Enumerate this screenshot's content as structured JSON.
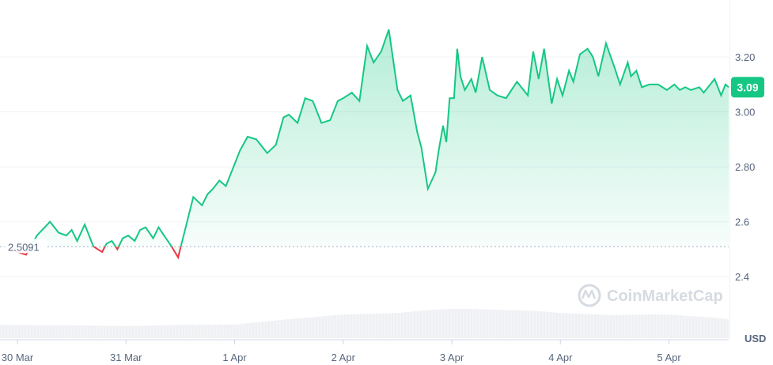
{
  "chart_data": {
    "type": "area",
    "currency_label": "USD",
    "watermark": "CoinMarketCap",
    "baseline": {
      "value": 2.5091,
      "label": "2.5091"
    },
    "current": {
      "value": 3.09,
      "label": "3.09"
    },
    "ylim": [
      2.3,
      3.35
    ],
    "y_ticks": [
      {
        "value": 2.4,
        "label": "2.4"
      },
      {
        "value": 2.6,
        "label": "2.6"
      },
      {
        "value": 2.8,
        "label": "2.80"
      },
      {
        "value": 3.0,
        "label": "3.00"
      },
      {
        "value": 3.2,
        "label": "3.20"
      }
    ],
    "xlim": [
      0,
      6.55
    ],
    "x_ticks": [
      {
        "value": 0.0,
        "label": "30 Mar"
      },
      {
        "value": 1.0,
        "label": "31 Mar"
      },
      {
        "value": 2.0,
        "label": "1 Apr"
      },
      {
        "value": 3.0,
        "label": "2 Apr"
      },
      {
        "value": 4.0,
        "label": "3 Apr"
      },
      {
        "value": 5.0,
        "label": "4 Apr"
      },
      {
        "value": 6.0,
        "label": "5 Apr"
      }
    ],
    "price_series": {
      "x": [
        -0.05,
        0.0,
        0.08,
        0.18,
        0.3,
        0.38,
        0.45,
        0.5,
        0.55,
        0.62,
        0.7,
        0.78,
        0.82,
        0.87,
        0.92,
        0.97,
        1.02,
        1.08,
        1.13,
        1.18,
        1.25,
        1.3,
        1.35,
        1.42,
        1.48,
        1.55,
        1.62,
        1.7,
        1.75,
        1.8,
        1.86,
        1.92,
        2.0,
        2.05,
        2.12,
        2.2,
        2.3,
        2.38,
        2.45,
        2.5,
        2.58,
        2.65,
        2.72,
        2.8,
        2.88,
        2.95,
        3.0,
        3.08,
        3.15,
        3.22,
        3.28,
        3.35,
        3.42,
        3.5,
        3.55,
        3.62,
        3.68,
        3.72,
        3.78,
        3.85,
        3.88,
        3.92,
        3.95,
        3.98,
        4.02,
        4.05,
        4.08,
        4.12,
        4.18,
        4.22,
        4.28,
        4.35,
        4.42,
        4.5,
        4.6,
        4.7,
        4.75,
        4.8,
        4.85,
        4.92,
        4.97,
        5.02,
        5.08,
        5.12,
        5.18,
        5.25,
        5.3,
        5.35,
        5.42,
        5.5,
        5.55,
        5.62,
        5.65,
        5.7,
        5.75,
        5.82,
        5.9,
        5.98,
        6.05,
        6.1,
        6.15,
        6.2,
        6.28,
        6.32,
        6.38,
        6.42,
        6.48,
        6.52,
        6.55
      ],
      "y": [
        2.5,
        2.49,
        2.48,
        2.55,
        2.6,
        2.56,
        2.55,
        2.57,
        2.53,
        2.59,
        2.51,
        2.49,
        2.52,
        2.53,
        2.5,
        2.54,
        2.55,
        2.53,
        2.57,
        2.58,
        2.54,
        2.58,
        2.55,
        2.51,
        2.47,
        2.58,
        2.69,
        2.66,
        2.7,
        2.72,
        2.75,
        2.73,
        2.81,
        2.86,
        2.91,
        2.9,
        2.85,
        2.88,
        2.98,
        2.99,
        2.96,
        3.05,
        3.04,
        2.96,
        2.97,
        3.04,
        3.05,
        3.07,
        3.04,
        3.24,
        3.18,
        3.22,
        3.3,
        3.08,
        3.04,
        3.06,
        2.93,
        2.87,
        2.72,
        2.78,
        2.86,
        2.95,
        2.89,
        3.05,
        3.05,
        3.23,
        3.13,
        3.08,
        3.12,
        3.07,
        3.2,
        3.08,
        3.06,
        3.05,
        3.11,
        3.06,
        3.22,
        3.12,
        3.23,
        3.03,
        3.12,
        3.06,
        3.15,
        3.11,
        3.21,
        3.23,
        3.2,
        3.13,
        3.25,
        3.16,
        3.1,
        3.18,
        3.13,
        3.15,
        3.09,
        3.1,
        3.1,
        3.08,
        3.1,
        3.08,
        3.09,
        3.08,
        3.09,
        3.07,
        3.1,
        3.12,
        3.06,
        3.1,
        3.09
      ]
    },
    "volume_series": {
      "x": [
        0.0,
        0.5,
        1.0,
        1.5,
        2.0,
        2.5,
        3.0,
        3.5,
        3.8,
        4.0,
        4.2,
        4.5,
        4.8,
        5.0,
        5.2,
        5.5,
        5.8,
        6.0,
        6.2,
        6.4,
        6.55
      ],
      "relative_volume": [
        0.3,
        0.28,
        0.25,
        0.3,
        0.32,
        0.55,
        0.75,
        0.82,
        0.95,
        1.0,
        0.99,
        0.95,
        0.9,
        0.82,
        0.78,
        0.73,
        0.75,
        0.75,
        0.68,
        0.62,
        0.55
      ]
    }
  }
}
